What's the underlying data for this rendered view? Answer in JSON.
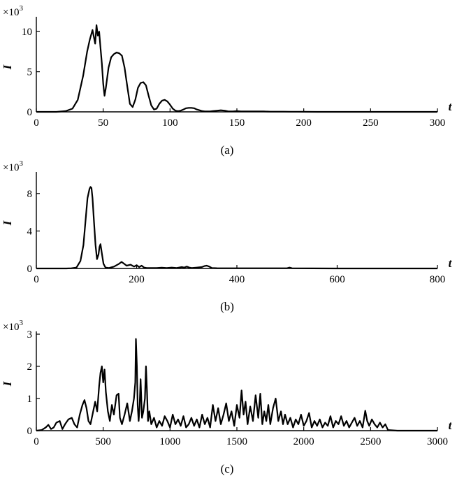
{
  "chart_data": [
    {
      "type": "line",
      "caption": "(a)",
      "xlabel": "t",
      "ylabel": "I",
      "y_multiplier": "×10",
      "y_multiplier_exp": "3",
      "xlim": [
        0,
        300
      ],
      "ylim": [
        0,
        11.5
      ],
      "xticks": [
        0,
        50,
        100,
        150,
        200,
        250,
        300
      ],
      "yticks": [
        0,
        5,
        10
      ],
      "series": [
        {
          "x": [
            0,
            15,
            22,
            27,
            31,
            35,
            38,
            40,
            42,
            44,
            45,
            46,
            47,
            48,
            49,
            50,
            51,
            52,
            54,
            56,
            58,
            60,
            62,
            64,
            66,
            68,
            70,
            72,
            74,
            76,
            78,
            80,
            82,
            84,
            86,
            88,
            90,
            92,
            94,
            96,
            98,
            100,
            102,
            104,
            106,
            108,
            110,
            112,
            114,
            116,
            118,
            120,
            122,
            124,
            126,
            128,
            130,
            132,
            135,
            138,
            141,
            144,
            147,
            150,
            153,
            156,
            160,
            165,
            170,
            175,
            180,
            185,
            190,
            195,
            200,
            210,
            220,
            230,
            240,
            250,
            260,
            270,
            280,
            290,
            300
          ],
          "y": [
            0,
            0,
            0.1,
            0.4,
            1.5,
            4.5,
            7.5,
            9.0,
            10.2,
            8.5,
            10.8,
            9.5,
            10.0,
            8.0,
            6.0,
            3.5,
            2.0,
            3.0,
            5.5,
            6.8,
            7.2,
            7.4,
            7.3,
            7.0,
            5.5,
            3.2,
            1.0,
            0.6,
            1.5,
            3.0,
            3.6,
            3.7,
            3.3,
            2.0,
            0.8,
            0.3,
            0.4,
            1.0,
            1.4,
            1.5,
            1.3,
            0.9,
            0.4,
            0.15,
            0.1,
            0.15,
            0.3,
            0.45,
            0.5,
            0.5,
            0.45,
            0.3,
            0.2,
            0.1,
            0.05,
            0.05,
            0.05,
            0.1,
            0.15,
            0.2,
            0.15,
            0.05,
            0.05,
            0.1,
            0.05,
            0.05,
            0.05,
            0.05,
            0.05,
            0.03,
            0.03,
            0.03,
            0.02,
            0.02,
            0.01,
            0,
            0,
            0,
            0,
            0,
            0,
            0,
            0,
            0,
            0
          ]
        }
      ]
    },
    {
      "type": "line",
      "caption": "(b)",
      "xlabel": "t",
      "ylabel": "I",
      "y_multiplier": "×10",
      "y_multiplier_exp": "3",
      "xlim": [
        0,
        800
      ],
      "ylim": [
        0,
        10
      ],
      "xticks": [
        0,
        200,
        400,
        600,
        800
      ],
      "yticks": [
        0,
        4,
        8
      ],
      "series": [
        {
          "x": [
            0,
            60,
            70,
            80,
            88,
            94,
            98,
            102,
            106,
            108,
            110,
            112,
            115,
            118,
            121,
            124,
            126,
            128,
            131,
            134,
            138,
            145,
            155,
            165,
            170,
            175,
            180,
            188,
            195,
            200,
            205,
            210,
            215,
            220,
            230,
            240,
            250,
            260,
            270,
            280,
            290,
            295,
            300,
            305,
            310,
            320,
            330,
            335,
            340,
            345,
            350,
            360,
            380,
            400,
            450,
            500,
            505,
            510,
            550,
            600,
            700,
            800
          ],
          "y": [
            0,
            0,
            0.02,
            0.1,
            0.8,
            2.5,
            5.0,
            7.5,
            8.5,
            8.7,
            8.6,
            7.5,
            5.0,
            2.5,
            1.0,
            1.5,
            2.3,
            2.6,
            1.5,
            0.5,
            0.1,
            0.05,
            0.2,
            0.5,
            0.7,
            0.5,
            0.3,
            0.4,
            0.2,
            0.35,
            0.15,
            0.3,
            0.1,
            0.05,
            0.05,
            0.05,
            0.08,
            0.05,
            0.1,
            0.05,
            0.15,
            0.1,
            0.2,
            0.1,
            0.05,
            0.1,
            0.15,
            0.25,
            0.3,
            0.2,
            0.05,
            0.03,
            0.02,
            0.02,
            0.02,
            0.02,
            0.1,
            0.02,
            0.01,
            0,
            0,
            0
          ]
        }
      ]
    },
    {
      "type": "line",
      "caption": "(c)",
      "xlabel": "t",
      "ylabel": "I",
      "y_multiplier": "×10",
      "y_multiplier_exp": "3",
      "xlim": [
        0,
        3000
      ],
      "ylim": [
        0,
        3
      ],
      "xticks": [
        0,
        500,
        1000,
        1500,
        2000,
        2500,
        3000
      ],
      "yticks": [
        0,
        1,
        2,
        3
      ],
      "series": [
        {
          "x": [
            0,
            40,
            70,
            90,
            110,
            130,
            150,
            175,
            195,
            215,
            240,
            265,
            285,
            305,
            325,
            345,
            360,
            375,
            390,
            405,
            420,
            440,
            455,
            470,
            480,
            490,
            500,
            510,
            520,
            535,
            550,
            565,
            580,
            600,
            615,
            625,
            640,
            660,
            680,
            700,
            715,
            730,
            740,
            745,
            752,
            758,
            765,
            772,
            780,
            790,
            800,
            812,
            820,
            828,
            835,
            845,
            860,
            880,
            900,
            920,
            940,
            960,
            980,
            1000,
            1020,
            1040,
            1060,
            1080,
            1100,
            1120,
            1140,
            1160,
            1180,
            1200,
            1220,
            1240,
            1260,
            1280,
            1300,
            1320,
            1340,
            1360,
            1380,
            1400,
            1420,
            1440,
            1460,
            1480,
            1500,
            1520,
            1535,
            1550,
            1565,
            1580,
            1600,
            1620,
            1640,
            1660,
            1675,
            1690,
            1705,
            1720,
            1735,
            1750,
            1770,
            1790,
            1810,
            1830,
            1845,
            1860,
            1880,
            1900,
            1920,
            1940,
            1960,
            1980,
            2000,
            2020,
            2040,
            2060,
            2080,
            2100,
            2120,
            2140,
            2160,
            2180,
            2200,
            2220,
            2240,
            2260,
            2280,
            2300,
            2320,
            2340,
            2360,
            2380,
            2400,
            2420,
            2440,
            2460,
            2475,
            2490,
            2510,
            2530,
            2550,
            2570,
            2590,
            2610,
            2630,
            2700,
            2800,
            2900,
            3000
          ],
          "y": [
            0,
            0.02,
            0.1,
            0.18,
            0.05,
            0.1,
            0.25,
            0.3,
            0.05,
            0.2,
            0.35,
            0.4,
            0.2,
            0.1,
            0.5,
            0.8,
            0.95,
            0.7,
            0.3,
            0.2,
            0.5,
            0.9,
            0.6,
            1.4,
            1.8,
            2.0,
            1.5,
            1.9,
            1.2,
            0.6,
            0.3,
            0.8,
            0.5,
            1.1,
            1.15,
            0.4,
            0.2,
            0.5,
            0.85,
            0.3,
            0.6,
            1.0,
            1.5,
            2.85,
            2.0,
            0.8,
            0.3,
            0.7,
            1.6,
            0.4,
            0.6,
            1.0,
            2.0,
            1.2,
            0.3,
            0.6,
            0.2,
            0.4,
            0.1,
            0.3,
            0.15,
            0.45,
            0.3,
            0.1,
            0.5,
            0.2,
            0.35,
            0.15,
            0.45,
            0.1,
            0.2,
            0.4,
            0.15,
            0.35,
            0.1,
            0.5,
            0.2,
            0.4,
            0.1,
            0.8,
            0.3,
            0.7,
            0.2,
            0.5,
            0.85,
            0.3,
            0.6,
            0.15,
            0.8,
            0.4,
            1.25,
            0.5,
            0.9,
            0.2,
            0.75,
            0.3,
            1.1,
            0.4,
            1.15,
            0.2,
            0.6,
            0.3,
            0.8,
            0.2,
            0.7,
            1.0,
            0.3,
            0.6,
            0.2,
            0.5,
            0.2,
            0.4,
            0.1,
            0.35,
            0.2,
            0.5,
            0.15,
            0.3,
            0.55,
            0.1,
            0.3,
            0.15,
            0.35,
            0.1,
            0.25,
            0.15,
            0.45,
            0.1,
            0.3,
            0.2,
            0.45,
            0.15,
            0.3,
            0.1,
            0.25,
            0.4,
            0.15,
            0.3,
            0.1,
            0.62,
            0.3,
            0.15,
            0.35,
            0.2,
            0.1,
            0.25,
            0.1,
            0.2,
            0.02,
            0,
            0,
            0,
            0
          ]
        }
      ]
    }
  ]
}
